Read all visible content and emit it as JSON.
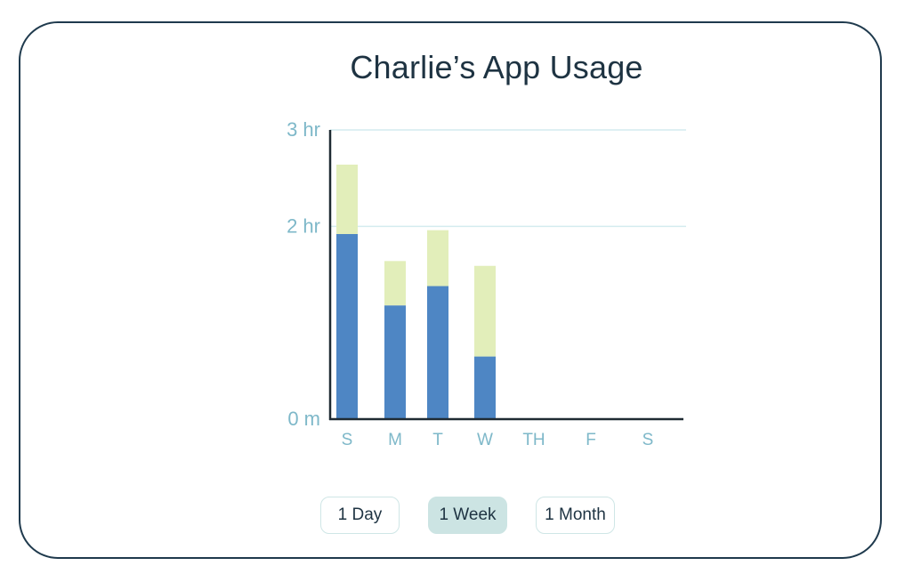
{
  "title": "Charlie’s App Usage",
  "colors": {
    "border": "#1f3a4d",
    "axis": "#1f2b33",
    "grid": "#d4ecef",
    "tick_text": "#7eb8c9",
    "series_primary": "#4e86c4",
    "series_secondary": "#e2eeba",
    "active_toggle": "#cce4e3"
  },
  "range_toggle": {
    "options": [
      "1 Day",
      "1 Week",
      "1 Month"
    ],
    "selected": "1 Week"
  },
  "chart_data": {
    "type": "bar",
    "stacked": true,
    "categories": [
      "S",
      "M",
      "T",
      "W",
      "TH",
      "F",
      "S"
    ],
    "series": [
      {
        "values": [
          1.92,
          1.18,
          1.38,
          0.65,
          null,
          null,
          null
        ]
      },
      {
        "values": [
          0.72,
          0.46,
          0.58,
          0.94,
          null,
          null,
          null
        ]
      }
    ],
    "ylim": [
      0,
      3
    ],
    "yticks": [
      {
        "value": 0,
        "label": "0 m"
      },
      {
        "value": 2,
        "label": "2 hr"
      },
      {
        "value": 3,
        "label": "3 hr"
      }
    ],
    "grid": true,
    "legend": "none"
  }
}
